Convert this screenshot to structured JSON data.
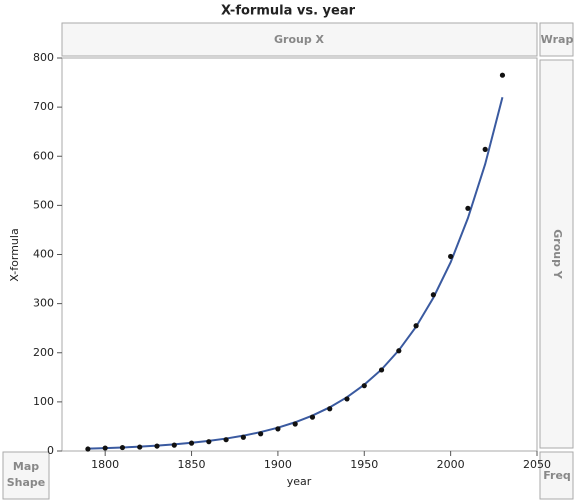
{
  "chart_data": {
    "type": "scatter",
    "title": "X-formula vs. year",
    "x_label": "year",
    "y_label": "X-formula",
    "x": [
      1790,
      1800,
      1810,
      1820,
      1830,
      1840,
      1850,
      1860,
      1870,
      1880,
      1890,
      1900,
      1910,
      1920,
      1930,
      1940,
      1950,
      1960,
      1970,
      1980,
      1990,
      2000,
      2010,
      2020,
      2030
    ],
    "values": [
      4,
      6,
      7,
      8,
      10,
      12,
      16,
      19,
      23,
      28,
      35,
      45,
      55,
      69,
      86,
      106,
      133,
      165,
      204,
      255,
      318,
      396,
      494,
      614,
      765
    ],
    "fit_values": [
      4.8,
      5.9,
      7.2,
      8.9,
      11.0,
      13.5,
      16.7,
      20.6,
      25.3,
      31.2,
      38.5,
      47.5,
      58.5,
      72.1,
      88.9,
      109.5,
      135,
      166,
      205,
      253,
      312,
      384,
      474,
      584,
      720
    ],
    "color": "#111111",
    "fit_color": "#3a5aa0",
    "xlim": [
      1775,
      2050
    ],
    "xticks": [
      1800,
      1850,
      1900,
      1950,
      2000,
      2050
    ],
    "ylim": [
      0,
      800
    ],
    "yticks": [
      0,
      100,
      200,
      300,
      400,
      500,
      600,
      700,
      800
    ]
  },
  "ui": {
    "group_x": "Group X",
    "wrap": "Wrap",
    "group_y": "Group Y",
    "map_shape": [
      "Map",
      "Shape"
    ],
    "freq": "Freq"
  }
}
